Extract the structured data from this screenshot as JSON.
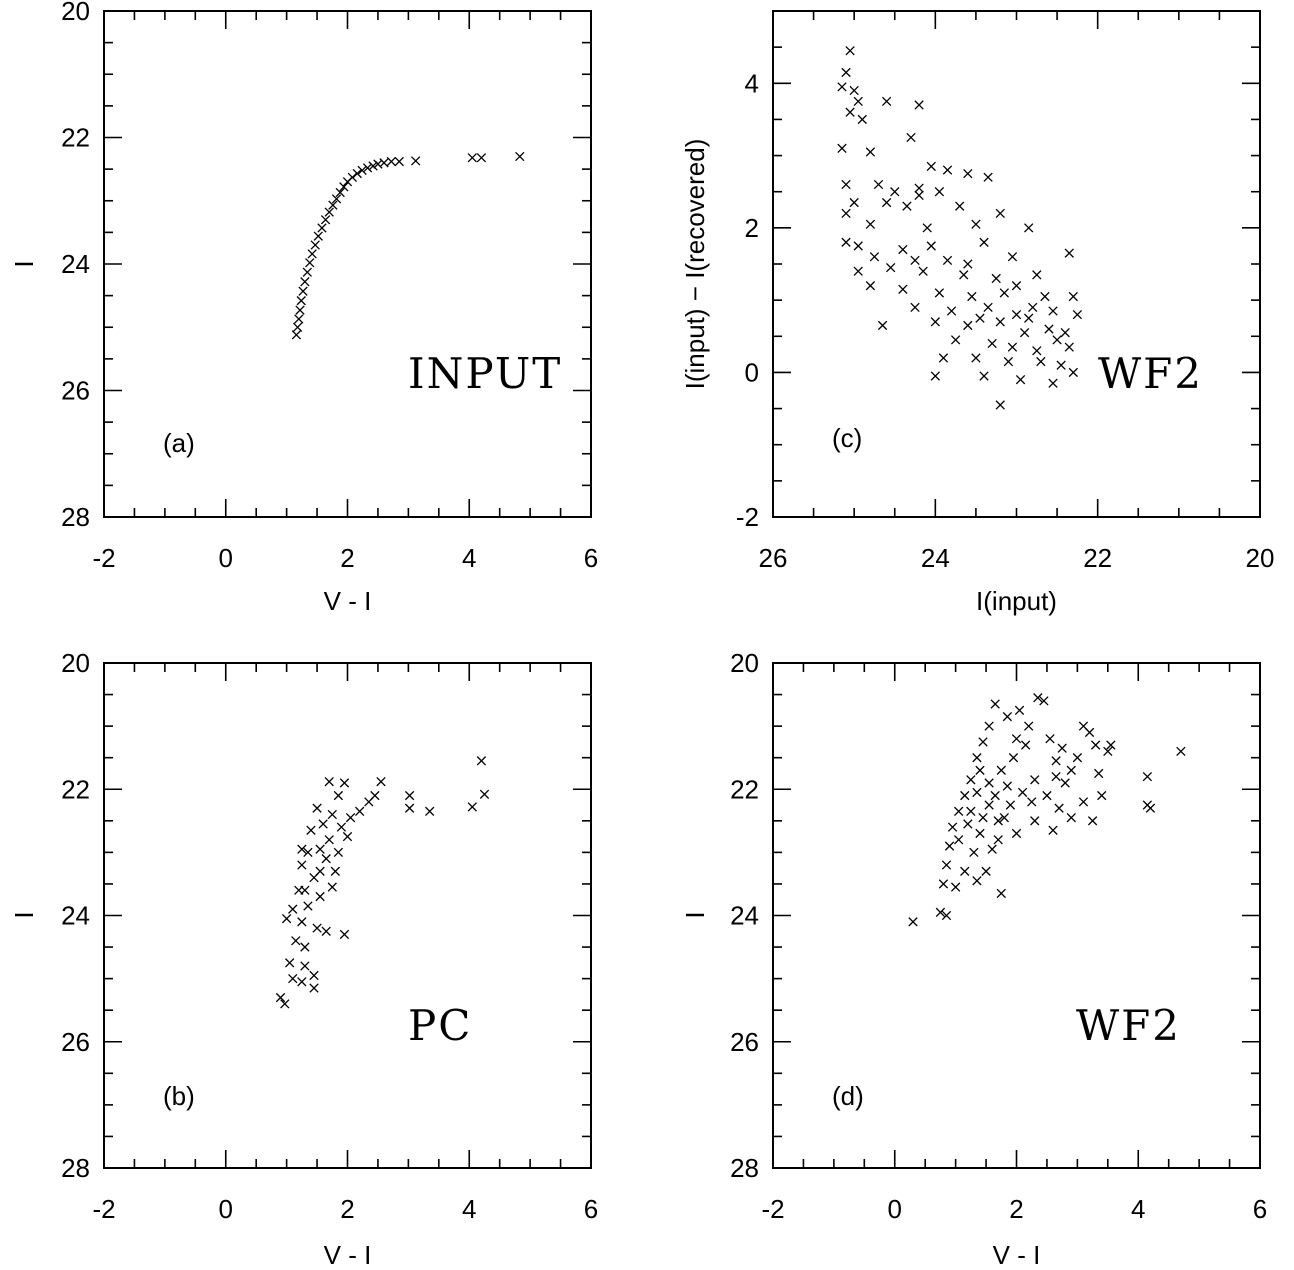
{
  "chart_data": [
    {
      "type": "scatter",
      "panel_tag": "(a)",
      "panel_name": "INPUT",
      "xlabel": "V - I",
      "ylabel": "I",
      "xlim": [
        -2,
        6
      ],
      "ylim": [
        28,
        20
      ],
      "y_inverted": true,
      "xticks": [
        "-2",
        "0",
        "2",
        "4",
        "6"
      ],
      "yticks": [
        "20",
        "22",
        "24",
        "26",
        "28"
      ],
      "marker": "x",
      "points": [
        [
          4.83,
          22.3
        ],
        [
          4.2,
          22.32
        ],
        [
          4.05,
          22.32
        ],
        [
          3.12,
          22.37
        ],
        [
          2.85,
          22.38
        ],
        [
          2.72,
          22.38
        ],
        [
          2.6,
          22.4
        ],
        [
          2.5,
          22.42
        ],
        [
          2.42,
          22.45
        ],
        [
          2.33,
          22.48
        ],
        [
          2.24,
          22.52
        ],
        [
          2.16,
          22.57
        ],
        [
          2.08,
          22.63
        ],
        [
          2.0,
          22.7
        ],
        [
          1.94,
          22.78
        ],
        [
          1.88,
          22.87
        ],
        [
          1.82,
          22.97
        ],
        [
          1.76,
          23.07
        ],
        [
          1.7,
          23.18
        ],
        [
          1.64,
          23.3
        ],
        [
          1.58,
          23.43
        ],
        [
          1.52,
          23.56
        ],
        [
          1.47,
          23.7
        ],
        [
          1.42,
          23.84
        ],
        [
          1.38,
          23.98
        ],
        [
          1.34,
          24.13
        ],
        [
          1.3,
          24.28
        ],
        [
          1.27,
          24.43
        ],
        [
          1.24,
          24.58
        ],
        [
          1.22,
          24.73
        ],
        [
          1.2,
          24.87
        ],
        [
          1.18,
          25.0
        ],
        [
          1.16,
          25.12
        ]
      ]
    },
    {
      "type": "scatter",
      "panel_tag": "(b)",
      "panel_name": "PC",
      "xlabel": "V - I",
      "ylabel": "I",
      "xlim": [
        -2,
        6
      ],
      "ylim": [
        28,
        20
      ],
      "y_inverted": true,
      "xticks": [
        "-2",
        "0",
        "2",
        "4",
        "6"
      ],
      "yticks": [
        "20",
        "22",
        "24",
        "26",
        "28"
      ],
      "marker": "x",
      "points": [
        [
          4.2,
          21.55
        ],
        [
          4.25,
          22.08
        ],
        [
          4.05,
          22.28
        ],
        [
          3.02,
          22.1
        ],
        [
          3.02,
          22.3
        ],
        [
          3.35,
          22.35
        ],
        [
          2.55,
          21.88
        ],
        [
          2.45,
          22.1
        ],
        [
          2.35,
          22.2
        ],
        [
          2.2,
          22.35
        ],
        [
          2.05,
          22.45
        ],
        [
          1.95,
          21.9
        ],
        [
          1.7,
          21.88
        ],
        [
          1.85,
          22.1
        ],
        [
          1.75,
          22.4
        ],
        [
          1.6,
          22.55
        ],
        [
          1.9,
          22.6
        ],
        [
          1.7,
          22.8
        ],
        [
          1.5,
          22.3
        ],
        [
          1.4,
          22.65
        ],
        [
          1.55,
          22.95
        ],
        [
          1.35,
          23.0
        ],
        [
          1.25,
          23.2
        ],
        [
          1.65,
          23.1
        ],
        [
          1.8,
          23.3
        ],
        [
          1.45,
          23.4
        ],
        [
          1.2,
          23.6
        ],
        [
          1.55,
          23.7
        ],
        [
          1.35,
          23.85
        ],
        [
          1.1,
          23.9
        ],
        [
          1.0,
          24.05
        ],
        [
          1.25,
          24.1
        ],
        [
          1.5,
          24.2
        ],
        [
          1.65,
          24.25
        ],
        [
          1.15,
          24.4
        ],
        [
          1.3,
          24.5
        ],
        [
          1.95,
          24.3
        ],
        [
          1.05,
          24.75
        ],
        [
          1.3,
          24.8
        ],
        [
          1.1,
          25.0
        ],
        [
          1.25,
          25.05
        ],
        [
          1.45,
          24.95
        ],
        [
          1.45,
          25.15
        ],
        [
          0.9,
          25.3
        ],
        [
          0.97,
          25.4
        ],
        [
          1.85,
          23.0
        ],
        [
          2.0,
          22.75
        ],
        [
          1.3,
          23.6
        ],
        [
          1.55,
          23.3
        ],
        [
          1.25,
          22.95
        ],
        [
          1.75,
          23.55
        ]
      ]
    },
    {
      "type": "scatter",
      "panel_tag": "(c)",
      "panel_name": "WF2",
      "xlabel": "I(input)",
      "ylabel": "I(input) − I(recovered)",
      "xlim": [
        26,
        20
      ],
      "ylim": [
        -2,
        5
      ],
      "x_inverted": true,
      "xticks": [
        "26",
        "24",
        "22",
        "20"
      ],
      "yticks": [
        "-2",
        "0",
        "2",
        "4"
      ],
      "marker": "x",
      "points": [
        [
          25.05,
          4.45
        ],
        [
          25.1,
          4.15
        ],
        [
          25.15,
          3.95
        ],
        [
          25.0,
          3.9
        ],
        [
          24.95,
          3.75
        ],
        [
          24.6,
          3.75
        ],
        [
          24.2,
          3.7
        ],
        [
          25.05,
          3.6
        ],
        [
          24.9,
          3.5
        ],
        [
          24.3,
          3.25
        ],
        [
          25.15,
          3.1
        ],
        [
          24.8,
          3.05
        ],
        [
          24.05,
          2.85
        ],
        [
          23.85,
          2.8
        ],
        [
          23.6,
          2.75
        ],
        [
          23.35,
          2.7
        ],
        [
          25.1,
          2.6
        ],
        [
          24.7,
          2.6
        ],
        [
          24.5,
          2.5
        ],
        [
          24.2,
          2.55
        ],
        [
          23.95,
          2.5
        ],
        [
          25.0,
          2.35
        ],
        [
          24.6,
          2.35
        ],
        [
          24.35,
          2.3
        ],
        [
          23.7,
          2.3
        ],
        [
          23.2,
          2.2
        ],
        [
          25.1,
          2.2
        ],
        [
          24.8,
          2.05
        ],
        [
          24.1,
          2.0
        ],
        [
          23.5,
          2.05
        ],
        [
          22.85,
          2.0
        ],
        [
          25.1,
          1.8
        ],
        [
          24.95,
          1.75
        ],
        [
          24.4,
          1.7
        ],
        [
          24.05,
          1.75
        ],
        [
          23.4,
          1.8
        ],
        [
          24.75,
          1.6
        ],
        [
          24.25,
          1.55
        ],
        [
          23.85,
          1.55
        ],
        [
          23.05,
          1.6
        ],
        [
          22.35,
          1.65
        ],
        [
          24.95,
          1.4
        ],
        [
          24.55,
          1.45
        ],
        [
          24.15,
          1.4
        ],
        [
          23.65,
          1.35
        ],
        [
          23.25,
          1.3
        ],
        [
          22.75,
          1.35
        ],
        [
          24.8,
          1.2
        ],
        [
          24.4,
          1.15
        ],
        [
          23.95,
          1.1
        ],
        [
          23.55,
          1.05
        ],
        [
          23.15,
          1.1
        ],
        [
          22.65,
          1.05
        ],
        [
          22.3,
          1.05
        ],
        [
          24.25,
          0.9
        ],
        [
          23.8,
          0.85
        ],
        [
          23.35,
          0.9
        ],
        [
          23.0,
          0.8
        ],
        [
          22.85,
          0.75
        ],
        [
          22.55,
          0.85
        ],
        [
          22.25,
          0.8
        ],
        [
          24.65,
          0.65
        ],
        [
          24.0,
          0.7
        ],
        [
          23.6,
          0.65
        ],
        [
          23.2,
          0.7
        ],
        [
          22.9,
          0.55
        ],
        [
          22.6,
          0.6
        ],
        [
          22.4,
          0.55
        ],
        [
          23.75,
          0.45
        ],
        [
          23.3,
          0.4
        ],
        [
          23.05,
          0.35
        ],
        [
          22.75,
          0.3
        ],
        [
          22.35,
          0.35
        ],
        [
          23.9,
          0.2
        ],
        [
          23.5,
          0.2
        ],
        [
          23.1,
          0.15
        ],
        [
          22.7,
          0.15
        ],
        [
          22.45,
          0.1
        ],
        [
          22.3,
          0.0
        ],
        [
          24.0,
          -0.05
        ],
        [
          23.4,
          -0.05
        ],
        [
          22.95,
          -0.1
        ],
        [
          22.55,
          -0.15
        ],
        [
          23.2,
          -0.45
        ],
        [
          24.2,
          2.45
        ],
        [
          23.6,
          1.5
        ],
        [
          23.0,
          1.2
        ],
        [
          22.8,
          0.9
        ],
        [
          23.45,
          0.75
        ],
        [
          22.5,
          0.45
        ]
      ]
    },
    {
      "type": "scatter",
      "panel_tag": "(d)",
      "panel_name": "WF2",
      "xlabel": "V - I",
      "ylabel": "I",
      "xlim": [
        -2,
        6
      ],
      "ylim": [
        28,
        20
      ],
      "y_inverted": true,
      "xticks": [
        "-2",
        "0",
        "2",
        "4",
        "6"
      ],
      "yticks": [
        "20",
        "22",
        "24",
        "26",
        "28"
      ],
      "marker": "x",
      "points": [
        [
          4.7,
          21.4
        ],
        [
          4.15,
          21.8
        ],
        [
          4.15,
          22.25
        ],
        [
          4.2,
          22.3
        ],
        [
          3.55,
          21.3
        ],
        [
          3.5,
          21.4
        ],
        [
          3.3,
          21.3
        ],
        [
          3.1,
          21.0
        ],
        [
          3.2,
          21.1
        ],
        [
          3.0,
          21.5
        ],
        [
          3.35,
          21.75
        ],
        [
          2.9,
          21.7
        ],
        [
          2.75,
          21.35
        ],
        [
          2.65,
          21.8
        ],
        [
          2.55,
          21.2
        ],
        [
          2.45,
          20.6
        ],
        [
          2.35,
          20.55
        ],
        [
          2.2,
          21.0
        ],
        [
          2.05,
          20.75
        ],
        [
          1.85,
          20.85
        ],
        [
          1.65,
          20.65
        ],
        [
          1.55,
          21.0
        ],
        [
          1.45,
          21.25
        ],
        [
          1.35,
          21.5
        ],
        [
          1.25,
          21.85
        ],
        [
          1.15,
          22.1
        ],
        [
          1.05,
          22.35
        ],
        [
          0.95,
          22.6
        ],
        [
          0.9,
          22.9
        ],
        [
          0.85,
          23.2
        ],
        [
          0.8,
          23.5
        ],
        [
          0.75,
          23.95
        ],
        [
          0.85,
          24.0
        ],
        [
          0.3,
          24.1
        ],
        [
          1.75,
          23.65
        ],
        [
          1.5,
          23.3
        ],
        [
          1.6,
          22.95
        ],
        [
          1.4,
          22.7
        ],
        [
          1.7,
          22.5
        ],
        [
          1.9,
          22.25
        ],
        [
          2.1,
          22.05
        ],
        [
          2.3,
          21.85
        ],
        [
          2.5,
          22.1
        ],
        [
          2.7,
          22.3
        ],
        [
          2.9,
          22.45
        ],
        [
          3.1,
          22.2
        ],
        [
          3.25,
          22.5
        ],
        [
          2.6,
          22.65
        ],
        [
          2.3,
          22.5
        ],
        [
          2.0,
          22.7
        ],
        [
          1.8,
          22.45
        ],
        [
          1.55,
          22.25
        ],
        [
          1.35,
          22.05
        ],
        [
          1.2,
          22.55
        ],
        [
          1.05,
          22.8
        ],
        [
          1.3,
          23.0
        ],
        [
          1.15,
          23.3
        ],
        [
          1.55,
          21.9
        ],
        [
          1.75,
          21.7
        ],
        [
          1.95,
          21.5
        ],
        [
          2.15,
          21.3
        ],
        [
          1.4,
          21.7
        ],
        [
          1.65,
          22.1
        ],
        [
          1.85,
          21.95
        ],
        [
          1.25,
          22.35
        ],
        [
          1.45,
          22.45
        ],
        [
          1.7,
          22.8
        ],
        [
          2.25,
          22.2
        ],
        [
          2.8,
          21.9
        ],
        [
          3.4,
          22.1
        ],
        [
          1.0,
          23.55
        ],
        [
          1.35,
          23.45
        ],
        [
          2.0,
          21.2
        ],
        [
          2.65,
          21.55
        ]
      ]
    }
  ]
}
